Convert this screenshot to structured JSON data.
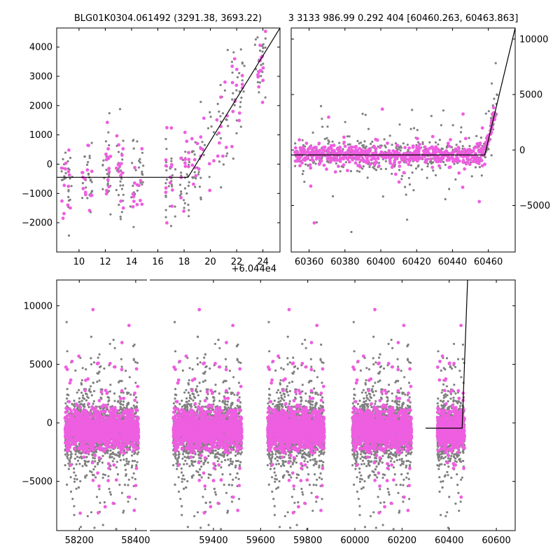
{
  "chart_data": [
    {
      "type": "scatter",
      "panel": "top-left",
      "title": "BLG01K0304.061492 (3291.38, 3693.22)",
      "x_offset_label": "+6.044e4",
      "xlim": [
        8.3,
        25.3
      ],
      "ylim": [
        -3000,
        4650
      ],
      "x_ticks": [
        10,
        12,
        14,
        16,
        18,
        20,
        22,
        24
      ],
      "y_ticks": [
        -2000,
        -1000,
        0,
        1000,
        2000,
        3000,
        4000
      ],
      "y_axis_side": "left",
      "series": [
        {
          "color": "#808080",
          "values": []
        },
        {
          "color": "#ee5ee0",
          "values": []
        }
      ],
      "model_line": [
        [
          8.3,
          -450
        ],
        [
          18.3,
          -450
        ],
        [
          25.3,
          4650
        ]
      ]
    },
    {
      "type": "scatter",
      "panel": "top-right",
      "title": "3 3133 986.99 0.292 404 [60460.263, 60463.863]",
      "xlim": [
        60350,
        60475
      ],
      "ylim": [
        -9200,
        11000
      ],
      "x_ticks": [
        60360,
        60380,
        60400,
        60420,
        60440,
        60460
      ],
      "y_ticks": [
        -5000,
        0,
        5000,
        10000
      ],
      "y_axis_side": "right",
      "series": [
        {
          "color": "#808080",
          "values": []
        },
        {
          "color": "#ee5ee0",
          "values": []
        }
      ],
      "model_line": [
        [
          60350,
          -450
        ],
        [
          60458,
          -450
        ],
        [
          60475,
          11000
        ]
      ]
    },
    {
      "type": "scatter",
      "panel": "bottom",
      "xlim": [
        58120,
        60680
      ],
      "ylim": [
        -9200,
        12200
      ],
      "x_ticks": [
        58200,
        58400,
        59400,
        59600,
        59800,
        60000,
        60200,
        60400,
        60600
      ],
      "y_ticks": [
        -5000,
        0,
        5000,
        10000
      ],
      "y_axis_side": "left",
      "broken_x_axis": true,
      "series": [
        {
          "color": "#808080",
          "values": []
        },
        {
          "color": "#ee5ee0",
          "values": []
        }
      ],
      "model_line": [
        [
          60300,
          -450
        ],
        [
          60455,
          -450
        ],
        [
          60478,
          12200
        ]
      ]
    }
  ]
}
